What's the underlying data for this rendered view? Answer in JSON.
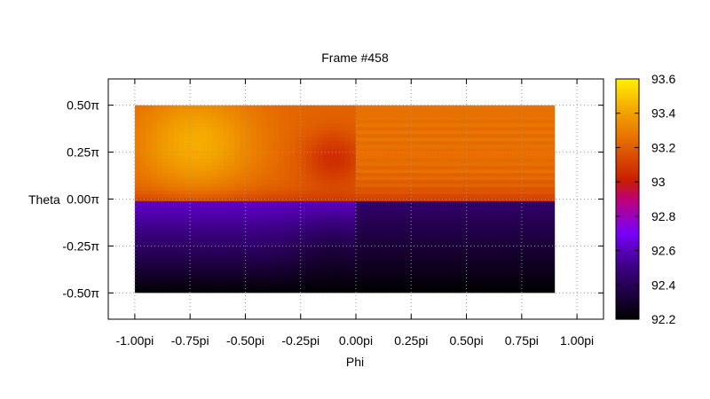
{
  "chart_data": {
    "type": "heatmap",
    "title": "Frame #458",
    "xlabel": "Phi",
    "ylabel": "Theta",
    "x_ticks": [
      "-1.00pi",
      "-0.75pi",
      "-0.50pi",
      "-0.25pi",
      "0.00pi",
      "0.25pi",
      "0.50pi",
      "0.75pi",
      "1.00pi"
    ],
    "y_ticks": [
      "0.50π",
      "0.25π",
      "0.00π",
      "-0.25π",
      "-0.50π"
    ],
    "xlim": [
      -1.12,
      1.12
    ],
    "ylim": [
      -0.64,
      0.64
    ],
    "data_extent": {
      "x": [
        -1.0,
        0.9
      ],
      "y": [
        -0.5,
        0.5
      ]
    },
    "grid": true,
    "colorbar": {
      "ticks": [
        "93.6",
        "93.4",
        "93.2",
        "93",
        "92.8",
        "92.6",
        "92.4",
        "92.2"
      ],
      "min": 92.2,
      "max": 93.6,
      "palette": "black-purple-red-orange-yellow"
    },
    "value_model": {
      "regions": [
        {
          "theta_range": [
            0.0,
            0.5
          ],
          "phi_range": [
            -1.0,
            0.0
          ],
          "min": 93.05,
          "max": 93.45
        },
        {
          "theta_range": [
            0.0,
            0.5
          ],
          "phi_range": [
            0.0,
            0.9
          ],
          "min": 93.2,
          "max": 93.3
        },
        {
          "theta_range": [
            -0.5,
            0.0
          ],
          "phi_range": [
            -1.0,
            0.0
          ],
          "min": 92.2,
          "max": 92.6
        },
        {
          "theta_range": [
            -0.5,
            0.0
          ],
          "phi_range": [
            0.0,
            0.9
          ],
          "min": 92.2,
          "max": 92.45
        }
      ]
    }
  }
}
